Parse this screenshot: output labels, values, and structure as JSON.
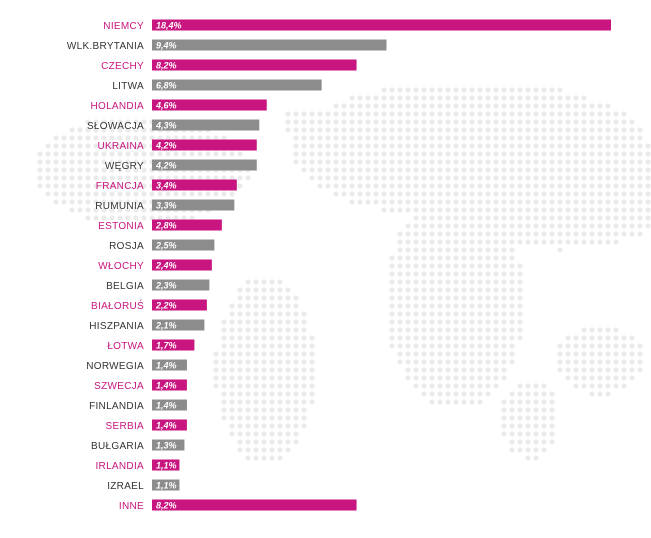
{
  "chart_data": {
    "type": "bar",
    "orientation": "horizontal",
    "categories": [
      "NIEMCY",
      "WLK.BRYTANIA",
      "CZECHY",
      "LITWA",
      "HOLANDIA",
      "SŁOWACJA",
      "UKRAINA",
      "WĘGRY",
      "FRANCJA",
      "RUMUNIA",
      "ESTONIA",
      "ROSJA",
      "WŁOCHY",
      "BELGIA",
      "BIAŁORUŚ",
      "HISZPANIA",
      "ŁOTWA",
      "NORWEGIA",
      "SZWECJA",
      "FINLANDIA",
      "SERBIA",
      "BUŁGARIA",
      "IRLANDIA",
      "IZRAEL",
      "INNE"
    ],
    "values": [
      18.4,
      9.4,
      8.2,
      6.8,
      4.6,
      4.3,
      4.2,
      4.2,
      3.4,
      3.3,
      2.8,
      2.5,
      2.4,
      2.3,
      2.2,
      2.1,
      1.7,
      1.4,
      1.4,
      1.4,
      1.4,
      1.3,
      1.1,
      1.1,
      8.2
    ],
    "value_labels": [
      "18,4%",
      "9,4%",
      "8,2%",
      "6,8%",
      "4,6%",
      "4,3%",
      "4,2%",
      "4,2%",
      "3,4%",
      "3,3%",
      "2,8%",
      "2,5%",
      "2,4%",
      "2,3%",
      "2,2%",
      "2,1%",
      "1,7%",
      "1,4%",
      "1,4%",
      "1,4%",
      "1,4%",
      "1,3%",
      "1,1%",
      "1,1%",
      "8,2%"
    ],
    "highlighted": [
      true,
      false,
      true,
      false,
      true,
      false,
      true,
      false,
      true,
      false,
      true,
      false,
      true,
      false,
      true,
      false,
      true,
      false,
      true,
      false,
      true,
      false,
      true,
      false,
      true
    ],
    "colors": {
      "highlight": "#c8157f",
      "normal": "#8c8c8c",
      "highlight_label": "#c8157f",
      "normal_label": "#333333",
      "map_dots": "#ebebeb"
    },
    "title": "",
    "xlabel": "",
    "ylabel": "",
    "grid": false,
    "legend": "none",
    "background": "world-map-dots"
  }
}
